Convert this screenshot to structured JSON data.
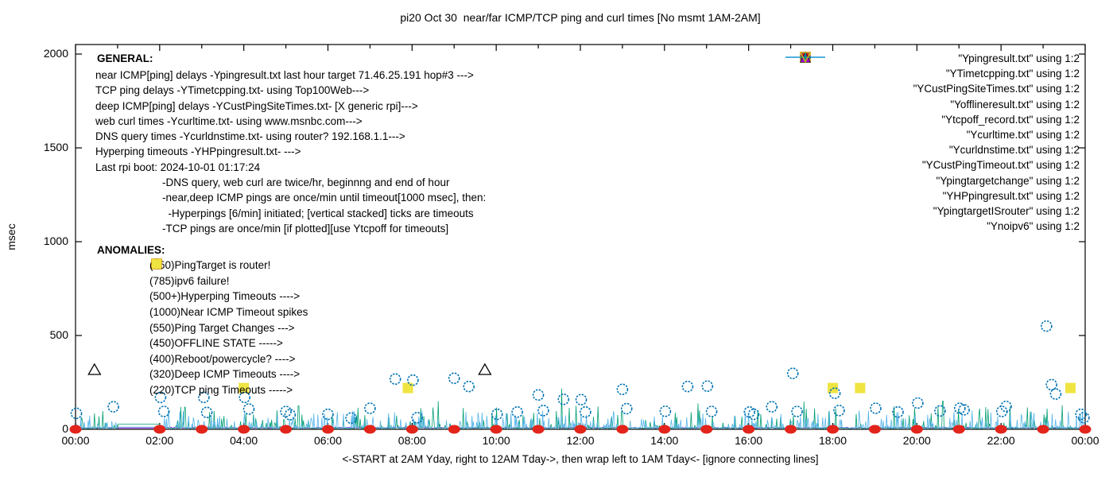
{
  "title": "pi20 Oct 30  near/far ICMP/TCP ping and curl times [No msmt 1AM-2AM]",
  "axes": {
    "ylabel": "msec",
    "y_ticks": [
      0,
      500,
      1000,
      1500,
      2000
    ],
    "x_tick_hours": [
      0,
      2,
      4,
      6,
      8,
      10,
      12,
      14,
      16,
      18,
      20,
      22,
      24
    ],
    "x_tick_labels": [
      "00:00",
      "02:00",
      "04:00",
      "06:00",
      "08:00",
      "10:00",
      "12:00",
      "14:00",
      "16:00",
      "18:00",
      "20:00",
      "22:00",
      "00:00"
    ],
    "x_caption": "<-START at 2AM Yday, right to 12AM Tday->, then wrap left to 1AM Tday<- [ignore connecting lines]"
  },
  "general": {
    "heading": "GENERAL:",
    "lines": [
      "near ICMP[ping] delays -Ypingresult.txt last hour target 71.46.25.191 hop#3 --->",
      "TCP ping delays -YTimetcpping.txt- using Top100Web--->",
      "deep ICMP[ping] delays -YCustPingSiteTimes.txt- [X generic rpi]--->",
      "web curl times -Ycurltime.txt- using www.msnbc.com--->",
      "DNS query times -Ycurldnstime.txt- using router? 192.168.1.1--->",
      "Hyperping timeouts -YHPpingresult.txt- --->",
      "Last rpi boot: 2024-10-01 01:17:24"
    ],
    "notes": [
      "-DNS query, web curl are twice/hr, beginnng and end of hour",
      "-near,deep ICMP pings are once/min until timeout[1000 msec], then:",
      "  -Hyperpings [6/min] initiated; [vertical stacked] ticks are timeouts",
      "-TCP pings are once/min [if plotted][use Ytcpoff for timeouts]"
    ]
  },
  "anomalies": {
    "heading": "ANOMALIES:",
    "items": [
      {
        "marker": "open-triangle-down",
        "color": "#56b4e9",
        "label": "(850)PingTarget is router!"
      },
      {
        "marker": "open-triangle-down",
        "color": "#e69f00",
        "label": "(785)ipv6 failure!"
      },
      {
        "marker": "plus",
        "color": "#009e73",
        "label": "(500+)Hyperping Timeouts ---->"
      },
      {
        "marker": "none",
        "color": "",
        "label": "(1000)Near ICMP Timeout spikes"
      },
      {
        "marker": "filled-triangle-up",
        "color": "#9400d3",
        "label": "(550)Ping Target Changes --->"
      },
      {
        "marker": "open-square",
        "color": "#e69f00",
        "label": "(450)OFFLINE STATE ----->"
      },
      {
        "marker": "none",
        "color": "",
        "label": "(400)Reboot/powercycle? ---->"
      },
      {
        "marker": "open-triangle-up",
        "color": "#000000",
        "label": "(320)Deep ICMP Timeouts ---->"
      },
      {
        "marker": "filled-square",
        "color": "#f0e442",
        "label": "(220)TCP ping Timeouts ----->"
      }
    ]
  },
  "legend": {
    "items": [
      {
        "label": "\"Ypingresult.txt\" using 1:2",
        "marker": "line",
        "color": "#9400d3"
      },
      {
        "label": "\"YTimetcpping.txt\" using 1:2",
        "marker": "line",
        "color": "#009e73"
      },
      {
        "label": "\"YCustPingSiteTimes.txt\" using 1:2",
        "marker": "line",
        "color": "#56b4e9"
      },
      {
        "label": "\"Yofflineresult.txt\" using 1:2",
        "marker": "open-square",
        "color": "#e69f00"
      },
      {
        "label": "\"Ytcpoff_record.txt\" using 1:2",
        "marker": "filled-square",
        "color": "#f0e442"
      },
      {
        "label": "\"Ycurltime.txt\" using 1:2",
        "marker": "open-circle",
        "color": "#0072b2"
      },
      {
        "label": "\"Ycurldnstime.txt\" using 1:2",
        "marker": "filled-circle",
        "color": "#e2241b"
      },
      {
        "label": "\"YCustPingTimeout.txt\" using 1:2",
        "marker": "open-triangle-up",
        "color": "#000000"
      },
      {
        "label": "\"Ypingtargetchange\" using 1:2",
        "marker": "filled-triangle-up",
        "color": "#9400d3"
      },
      {
        "label": "\"YHPpingresult.txt\" using 1:2",
        "marker": "plus",
        "color": "#009e73"
      },
      {
        "label": "\"YpingtargetISrouter\" using 1:2",
        "marker": "open-triangle-down",
        "color": "#56b4e9"
      },
      {
        "label": "\"Ynoipv6\" using 1:2",
        "marker": "open-triangle-down",
        "color": "#e69f00"
      }
    ]
  },
  "chart_data": {
    "type": "line",
    "title": "pi20 Oct 30  near/far ICMP/TCP ping and curl times [No msmt 1AM-2AM]",
    "xlabel": "<-START at 2AM Yday, right to 12AM Tday->, then wrap left to 1AM Tday<- [ignore connecting lines]",
    "ylabel": "msec",
    "ylim": [
      0,
      2000
    ],
    "xlim_hours": [
      0,
      24
    ],
    "grid": false,
    "legend_position": "top-right-inside",
    "no_msmt_window_hours": [
      1,
      2
    ],
    "series": [
      {
        "name": "Ypingresult.txt",
        "role": "near ICMP ping delay",
        "type": "noisy-line",
        "color": "#9400d3",
        "noise": {
          "seed": 303,
          "step_hours": 0.03,
          "base_min": 5,
          "base_range": 6,
          "spike_prob": 0,
          "spike_max": 0,
          "spike_pow": 1,
          "gap_value": 7
        },
        "big_spikes": []
      },
      {
        "name": "YTimetcpping.txt",
        "role": "TCP ping delay",
        "type": "noisy-line",
        "color": "#009e73",
        "noise": {
          "seed": 101,
          "step_hours": 0.018,
          "base_min": 3,
          "base_range": 6,
          "spike_prob": 0.2,
          "spike_max": 120,
          "spike_pow": 2.4,
          "gap_value": 28
        },
        "big_spikes": [
          [
            2.6,
            118
          ],
          [
            5.3,
            125
          ],
          [
            8.62,
            150
          ],
          [
            11.55,
            218
          ],
          [
            14.8,
            138
          ],
          [
            17.32,
            148
          ],
          [
            20.62,
            150
          ],
          [
            23.45,
            128
          ]
        ]
      },
      {
        "name": "YCustPingSiteTimes.txt",
        "role": "deep ICMP ping delay",
        "type": "noisy-line",
        "color": "#56b4e9",
        "noise": {
          "seed": 202,
          "step_hours": 0.016,
          "base_min": 4,
          "base_range": 7,
          "spike_prob": 0.3,
          "spike_max": 92,
          "spike_pow": 2.0,
          "gap_value": 12
        },
        "big_spikes": []
      },
      {
        "name": "Yofflineresult.txt",
        "role": "offline state",
        "type": "points",
        "marker": "open-square",
        "color": "#e69f00",
        "points": []
      },
      {
        "name": "Ytcpoff_record.txt",
        "role": "TCP ping timeouts (220)",
        "type": "points",
        "marker": "filled-square",
        "color": "#f0e442",
        "points": [
          [
            4.0,
            220
          ],
          [
            7.9,
            220
          ],
          [
            18.0,
            220
          ],
          [
            18.65,
            220
          ],
          [
            23.65,
            220
          ]
        ]
      },
      {
        "name": "Ycurltime.txt",
        "role": "web curl times",
        "type": "points",
        "marker": "open-circle",
        "color": "#0072b2",
        "points": [
          [
            0.02,
            85
          ],
          [
            0.9,
            120
          ],
          [
            2.02,
            170
          ],
          [
            2.1,
            95
          ],
          [
            3.05,
            170
          ],
          [
            3.12,
            90
          ],
          [
            4.02,
            170
          ],
          [
            4.12,
            108
          ],
          [
            5.0,
            95
          ],
          [
            5.1,
            78
          ],
          [
            6.0,
            80
          ],
          [
            6.55,
            60
          ],
          [
            7.0,
            112
          ],
          [
            7.6,
            268
          ],
          [
            8.02,
            262
          ],
          [
            8.12,
            62
          ],
          [
            9.0,
            272
          ],
          [
            9.35,
            228
          ],
          [
            10.02,
            80
          ],
          [
            10.5,
            92
          ],
          [
            11.0,
            183
          ],
          [
            11.12,
            100
          ],
          [
            11.6,
            160
          ],
          [
            12.02,
            158
          ],
          [
            12.12,
            92
          ],
          [
            13.0,
            213
          ],
          [
            13.1,
            110
          ],
          [
            14.02,
            96
          ],
          [
            14.55,
            228
          ],
          [
            15.02,
            230
          ],
          [
            15.12,
            95
          ],
          [
            16.02,
            92
          ],
          [
            16.12,
            80
          ],
          [
            16.55,
            120
          ],
          [
            17.05,
            298
          ],
          [
            17.15,
            95
          ],
          [
            18.05,
            192
          ],
          [
            18.15,
            100
          ],
          [
            19.02,
            112
          ],
          [
            19.55,
            92
          ],
          [
            20.02,
            140
          ],
          [
            20.55,
            98
          ],
          [
            21.02,
            112
          ],
          [
            21.12,
            104
          ],
          [
            22.02,
            95
          ],
          [
            22.12,
            122
          ],
          [
            23.08,
            550
          ],
          [
            23.2,
            238
          ],
          [
            23.3,
            188
          ],
          [
            23.9,
            80
          ],
          [
            23.97,
            62
          ]
        ]
      },
      {
        "name": "Ycurldnstime.txt",
        "role": "DNS query times (hourly pairs)",
        "type": "points",
        "marker": "filled-circle",
        "color": "#e2241b",
        "points": [
          [
            0,
            0
          ],
          [
            2,
            0
          ],
          [
            3,
            0
          ],
          [
            4,
            0
          ],
          [
            5,
            0
          ],
          [
            6,
            0
          ],
          [
            7,
            0
          ],
          [
            8,
            0
          ],
          [
            9,
            0
          ],
          [
            10,
            0
          ],
          [
            11,
            0
          ],
          [
            12,
            0
          ],
          [
            13,
            0
          ],
          [
            14,
            0
          ],
          [
            15,
            0
          ],
          [
            16,
            0
          ],
          [
            17,
            0
          ],
          [
            18,
            0
          ],
          [
            19,
            0
          ],
          [
            20,
            0
          ],
          [
            21,
            0
          ],
          [
            22,
            0
          ],
          [
            23,
            0
          ],
          [
            24,
            0
          ]
        ]
      },
      {
        "name": "YCustPingTimeout.txt",
        "role": "deep ICMP timeouts (320)",
        "type": "points",
        "marker": "open-triangle-up",
        "color": "#000000",
        "points": [
          [
            0.45,
            320
          ],
          [
            9.73,
            320
          ]
        ]
      },
      {
        "name": "Ypingtargetchange",
        "role": "ping target changes (550)",
        "type": "points",
        "marker": "filled-triangle-up",
        "color": "#9400d3",
        "points": []
      },
      {
        "name": "YHPpingresult.txt",
        "role": "hyperping timeouts",
        "type": "points",
        "marker": "plus",
        "color": "#009e73",
        "points": []
      },
      {
        "name": "YpingtargetISrouter",
        "role": "ping target is router (850)",
        "type": "points",
        "marker": "open-triangle-down",
        "color": "#56b4e9",
        "points": []
      },
      {
        "name": "Ynoipv6",
        "role": "ipv6 failure (785)",
        "type": "points",
        "marker": "open-triangle-down",
        "color": "#e69f00",
        "points": []
      }
    ]
  }
}
